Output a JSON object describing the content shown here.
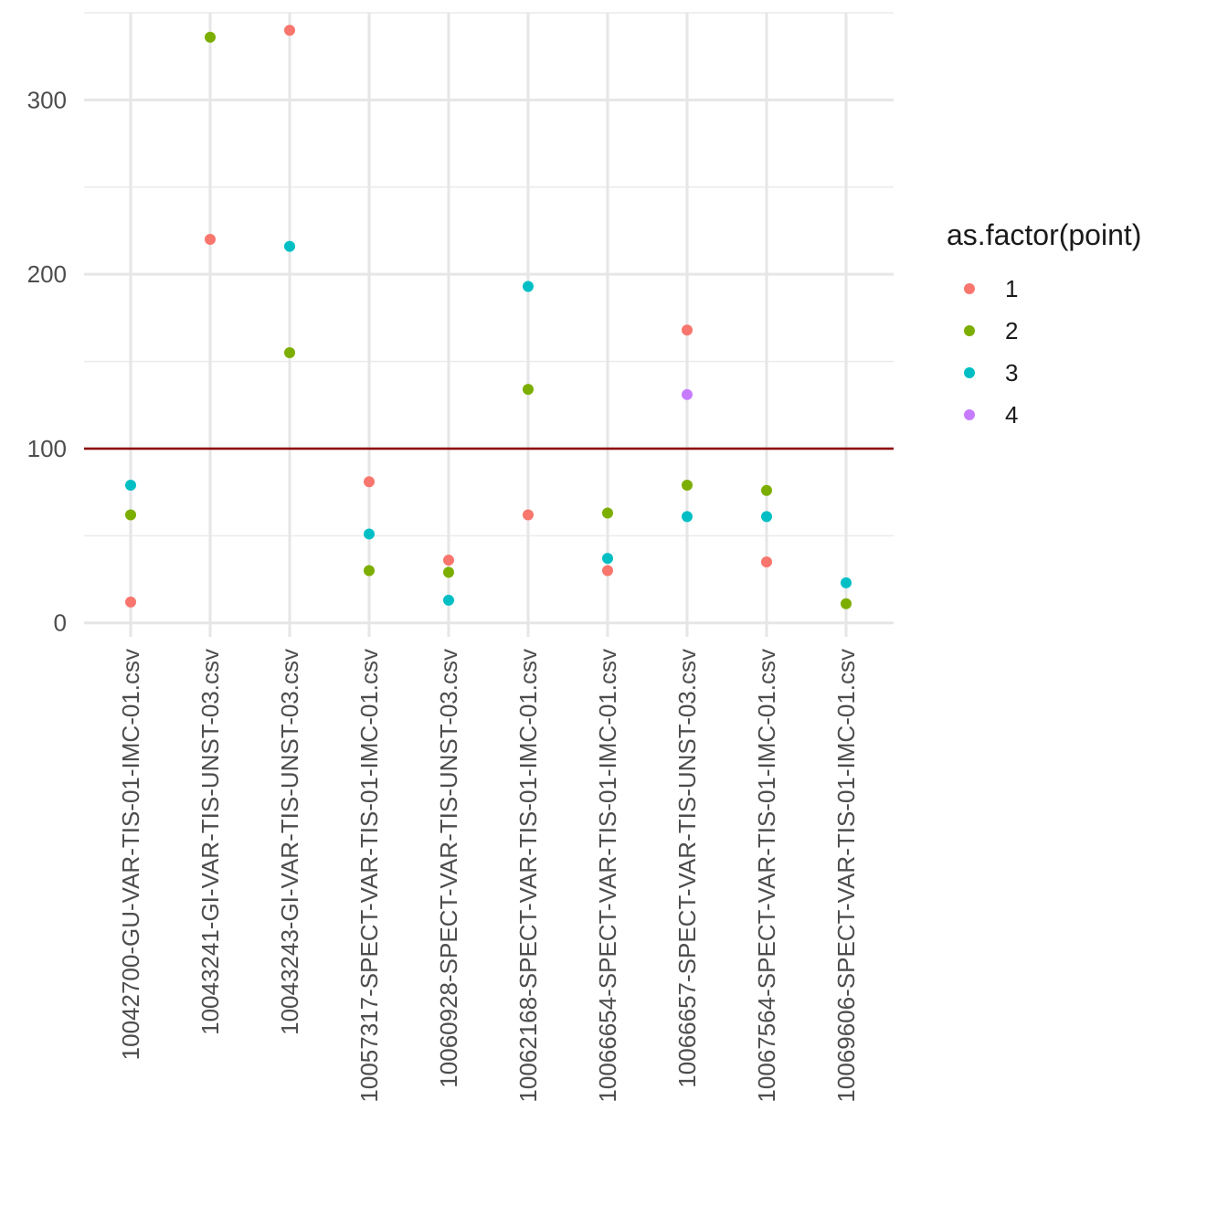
{
  "chart_data": {
    "type": "scatter",
    "title": "",
    "xlabel": "",
    "ylabel": "",
    "categories": [
      "10042700-GU-VAR-TIS-01-IMC-01.csv",
      "10043241-GI-VAR-TIS-UNST-03.csv",
      "10043243-GI-VAR-TIS-UNST-03.csv",
      "10057317-SPECT-VAR-TIS-01-IMC-01.csv",
      "10060928-SPECT-VAR-TIS-UNST-03.csv",
      "10062168-SPECT-VAR-TIS-01-IMC-01.csv",
      "10066654-SPECT-VAR-TIS-01-IMC-01.csv",
      "10066657-SPECT-VAR-TIS-UNST-03.csv",
      "10067564-SPECT-VAR-TIS-01-IMC-01.csv",
      "10069606-SPECT-VAR-TIS-01-IMC-01.csv"
    ],
    "y_ticks": [
      0,
      100,
      200,
      300
    ],
    "ylim": [
      -8,
      350
    ],
    "grid": true,
    "hline": {
      "y": 100,
      "color": "#8B0000"
    },
    "legend": {
      "title": "as.factor(point)",
      "position": "right"
    },
    "series": [
      {
        "name": "1",
        "color": "#F8766D",
        "values": [
          12,
          220,
          340,
          81,
          36,
          62,
          30,
          168,
          35,
          null
        ]
      },
      {
        "name": "2",
        "color": "#7CAE00",
        "values": [
          62,
          336,
          155,
          30,
          29,
          134,
          63,
          79,
          76,
          11
        ]
      },
      {
        "name": "3",
        "color": "#00BFC4",
        "values": [
          79,
          null,
          216,
          51,
          13,
          193,
          37,
          61,
          61,
          23
        ]
      },
      {
        "name": "4",
        "color": "#C77CFF",
        "values": [
          null,
          null,
          null,
          null,
          null,
          null,
          null,
          131,
          null,
          null
        ]
      }
    ]
  }
}
